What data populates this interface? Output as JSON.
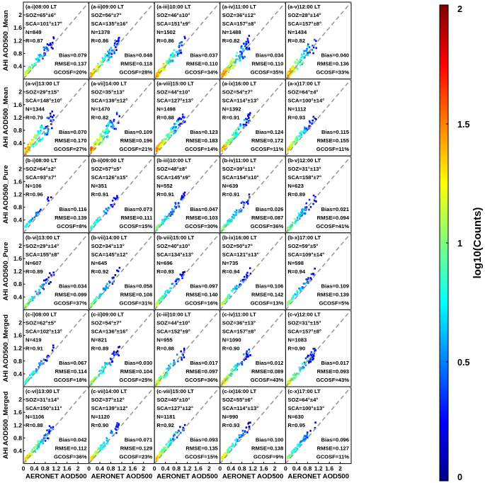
{
  "chart_data": {
    "type": "heatmap",
    "grid": "5 columns x 6 rows of density scatter panels with 1:1 dashed reference line",
    "xlabel": "AERONET AOD500",
    "ylabels": [
      "AHI AOD500_Mean",
      "AHI AOD500_Pure",
      "AHI AOD500_Merged"
    ],
    "xticks": [
      "0",
      "0.4",
      "0.8",
      "1.2",
      "1.6",
      "2"
    ],
    "yticks": [
      "0.4",
      "0.8",
      "1.2",
      "1.6",
      "2"
    ],
    "xlim": [
      0,
      2.4
    ],
    "ylim": [
      0,
      2.4
    ],
    "colorbar": {
      "label": "log10(Counts)",
      "ticks": [
        "0",
        "0.5",
        "1",
        "1.5",
        "2"
      ],
      "range": [
        0,
        2
      ],
      "colormap": "jet"
    },
    "panels": [
      {
        "id": "(a-i)",
        "time": "08:00 LT",
        "soz": "65",
        "soz_sd": "6",
        "sca": "101",
        "sca_sd": "17",
        "n": "849",
        "r": "0.87",
        "bias": "0.079",
        "rmse": "0.137",
        "gcosf": "20%"
      },
      {
        "id": "(a-ii)",
        "time": "09:00 LT",
        "soz": "56",
        "soz_sd": "7",
        "sca": "135",
        "sca_sd": "16",
        "n": "1378",
        "r": "0.86",
        "bias": "0.048",
        "rmse": "0.118",
        "gcosf": "28%"
      },
      {
        "id": "(a-iii)",
        "time": "10:00 LT",
        "soz": "46",
        "soz_sd": "10",
        "sca": "151",
        "sca_sd": "9",
        "n": "1502",
        "r": "0.86",
        "bias": "0.037",
        "rmse": "0.110",
        "gcosf": "34%"
      },
      {
        "id": "(a-iv)",
        "time": "11:00 LT",
        "soz": "36",
        "soz_sd": "12",
        "sca": "157",
        "sca_sd": "8",
        "n": "1488",
        "r": "0.82",
        "bias": "0.034",
        "rmse": "0.110",
        "gcosf": "35%"
      },
      {
        "id": "(a-v)",
        "time": "12:00 LT",
        "soz": "28",
        "soz_sd": "14",
        "sca": "157",
        "sca_sd": "8",
        "n": "1434",
        "r": "0.82",
        "bias": "0.040",
        "rmse": "0.136",
        "gcosf": "33%"
      },
      {
        "id": "(a-vi)",
        "time": "13:00 LT",
        "soz": "29",
        "soz_sd": "15",
        "sca": "148",
        "sca_sd": "10",
        "n": "1344",
        "r": "0.79",
        "bias": "0.070",
        "rmse": "0.170",
        "gcosf": "27%"
      },
      {
        "id": "(a-vii)",
        "time": "14:00 LT",
        "soz": "35",
        "soz_sd": "13",
        "sca": "139",
        "sca_sd": "12",
        "n": "1470",
        "r": "0.82",
        "bias": "0.109",
        "rmse": "0.196",
        "gcosf": "21%"
      },
      {
        "id": "(a-viii)",
        "time": "15:00 LT",
        "soz": "44",
        "soz_sd": "10",
        "sca": "127",
        "sca_sd": "13",
        "n": "1498",
        "r": "0.88",
        "bias": "0.123",
        "rmse": "0.183",
        "gcosf": "14%"
      },
      {
        "id": "(a-ix)",
        "time": "16:00 LT",
        "soz": "54",
        "soz_sd": "7",
        "sca": "114",
        "sca_sd": "13",
        "n": "1392",
        "r": "0.91",
        "bias": "0.124",
        "rmse": "0.172",
        "gcosf": "11%"
      },
      {
        "id": "(a-x)",
        "time": "17:00 LT",
        "soz": "64",
        "soz_sd": "4",
        "sca": "100",
        "sca_sd": "14",
        "n": "1112",
        "r": "0.93",
        "bias": "0.115",
        "rmse": "0.155",
        "gcosf": "11%"
      },
      {
        "id": "(b-i)",
        "time": "08:00 LT",
        "soz": "64",
        "soz_sd": "2",
        "sca": "93",
        "sca_sd": "7",
        "n": "106",
        "r": "0.96",
        "bias": "0.116",
        "rmse": "0.139",
        "gcosf": "8%"
      },
      {
        "id": "(b-ii)",
        "time": "09:00 LT",
        "soz": "57",
        "soz_sd": "5",
        "sca": "126",
        "sca_sd": "15",
        "n": "351",
        "r": "0.91",
        "bias": "0.073",
        "rmse": "0.111",
        "gcosf": "15%"
      },
      {
        "id": "(b-iii)",
        "time": "10:00 LT",
        "soz": "48",
        "soz_sd": "8",
        "sca": "145",
        "sca_sd": "9",
        "n": "552",
        "r": "0.91",
        "bias": "0.047",
        "rmse": "0.103",
        "gcosf": "30%"
      },
      {
        "id": "(b-iv)",
        "time": "11:00 LT",
        "soz": "39",
        "soz_sd": "11",
        "sca": "154",
        "sca_sd": "10",
        "n": "639",
        "r": "0.91",
        "bias": "0.026",
        "rmse": "0.087",
        "gcosf": "36%"
      },
      {
        "id": "(b-v)",
        "time": "12:00 LT",
        "soz": "31",
        "soz_sd": "13",
        "sca": "158",
        "sca_sd": "7",
        "n": "623",
        "r": "0.89",
        "bias": "0.021",
        "rmse": "0.094",
        "gcosf": "41%"
      },
      {
        "id": "(b-vi)",
        "time": "13:00 LT",
        "soz": "29",
        "soz_sd": "14",
        "sca": "155",
        "sca_sd": "8",
        "n": "607",
        "r": "0.89",
        "bias": "0.034",
        "rmse": "0.099",
        "gcosf": "37%"
      },
      {
        "id": "(b-vii)",
        "time": "14:00 LT",
        "soz": "34",
        "soz_sd": "13",
        "sca": "145",
        "sca_sd": "12",
        "n": "645",
        "r": "0.92",
        "bias": "0.058",
        "rmse": "0.108",
        "gcosf": "31%"
      },
      {
        "id": "(b-viii)",
        "time": "15:00 LT",
        "soz": "40",
        "soz_sd": "10",
        "sca": "134",
        "sca_sd": "13",
        "n": "696",
        "r": "0.93",
        "bias": "0.097",
        "rmse": "0.140",
        "gcosf": "16%"
      },
      {
        "id": "(b-ix)",
        "time": "16:00 LT",
        "soz": "50",
        "soz_sd": "7",
        "sca": "121",
        "sca_sd": "13",
        "n": "735",
        "r": "0.94",
        "bias": "0.106",
        "rmse": "0.142",
        "gcosf": "13%"
      },
      {
        "id": "(b-x)",
        "time": "17:00 LT",
        "soz": "59",
        "soz_sd": "5",
        "sca": "109",
        "sca_sd": "14",
        "n": "598",
        "r": "0.94",
        "bias": "0.109",
        "rmse": "0.139",
        "gcosf": "5%"
      },
      {
        "id": "(c-i)",
        "time": "08:00 LT",
        "soz": "62",
        "soz_sd": "5",
        "sca": "102",
        "sca_sd": "13",
        "n": "419",
        "r": "0.91",
        "bias": "0.067",
        "rmse": "0.114",
        "gcosf": "18%"
      },
      {
        "id": "(c-ii)",
        "time": "09:00 LT",
        "soz": "54",
        "soz_sd": "7",
        "sca": "136",
        "sca_sd": "16",
        "n": "821",
        "r": "0.89",
        "bias": "0.030",
        "rmse": "0.104",
        "gcosf": "25%"
      },
      {
        "id": "(c-iii)",
        "time": "10:00 LT",
        "soz": "44",
        "soz_sd": "10",
        "sca": "152",
        "sca_sd": "9",
        "n": "955",
        "r": "0.88",
        "bias": "0.017",
        "rmse": "0.097",
        "gcosf": "36%"
      },
      {
        "id": "(c-iv)",
        "time": "11:00 LT",
        "soz": "36",
        "soz_sd": "13",
        "sca": "157",
        "sca_sd": "8",
        "n": "1090",
        "r": "0.90",
        "bias": "0.012",
        "rmse": "0.089",
        "gcosf": "43%"
      },
      {
        "id": "(c-v)",
        "time": "12:00 LT",
        "soz": "31",
        "soz_sd": "15",
        "sca": "157",
        "sca_sd": "8",
        "n": "1083",
        "r": "0.90",
        "bias": "0.017",
        "rmse": "0.093",
        "gcosf": "43%"
      },
      {
        "id": "(c-vi)",
        "time": "13:00 LT",
        "soz": "31",
        "soz_sd": "14",
        "sca": "150",
        "sca_sd": "11",
        "n": "1106",
        "r": "0.88",
        "bias": "0.042",
        "rmse": "0.112",
        "gcosf": "36%"
      },
      {
        "id": "(c-vii)",
        "time": "14:00 LT",
        "soz": "37",
        "soz_sd": "12",
        "sca": "139",
        "sca_sd": "12",
        "n": "1120",
        "r": "0.90",
        "bias": "0.071",
        "rmse": "0.129",
        "gcosf": "23%"
      },
      {
        "id": "(c-viii)",
        "time": "15:00 LT",
        "soz": "45",
        "soz_sd": "10",
        "sca": "127",
        "sca_sd": "12",
        "n": "1181",
        "r": "0.92",
        "bias": "0.093",
        "rmse": "0.135",
        "gcosf": "15%"
      },
      {
        "id": "(c-ix)",
        "time": "16:00 LT",
        "soz": "55",
        "soz_sd": "6",
        "sca": "114",
        "sca_sd": "13",
        "n": "990",
        "r": "0.93",
        "bias": "0.100",
        "rmse": "0.138",
        "gcosf": "9%"
      },
      {
        "id": "(c-x)",
        "time": "17:00 LT",
        "soz": "64",
        "soz_sd": "4",
        "sca": "100",
        "sca_sd": "13",
        "n": "630",
        "r": "0.95",
        "bias": "0.096",
        "rmse": "0.127",
        "gcosf": "11%"
      }
    ]
  }
}
